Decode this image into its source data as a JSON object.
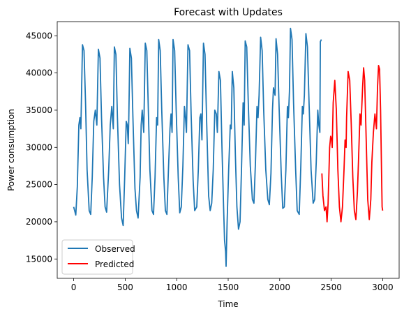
{
  "chart_data": {
    "type": "line",
    "title": "Forecast with Updates",
    "xlabel": "Time",
    "ylabel": "Power consumption",
    "xlim": [
      -160,
      3160
    ],
    "ylim": [
      12400,
      46900
    ],
    "xticks": [
      0,
      500,
      1000,
      1500,
      2000,
      2500,
      3000
    ],
    "yticks": [
      15000,
      20000,
      25000,
      30000,
      35000,
      40000,
      45000
    ],
    "grid": false,
    "legend_position": "lower-left",
    "series": [
      {
        "name": "Observed",
        "color": "#1f77b4",
        "points": [
          [
            0,
            22000
          ],
          [
            20,
            20900
          ],
          [
            35,
            24700
          ],
          [
            50,
            33000
          ],
          [
            60,
            34000
          ],
          [
            70,
            32500
          ],
          [
            85,
            43800
          ],
          [
            100,
            43000
          ],
          [
            115,
            36000
          ],
          [
            130,
            27000
          ],
          [
            150,
            21500
          ],
          [
            165,
            21000
          ],
          [
            180,
            26000
          ],
          [
            195,
            33500
          ],
          [
            210,
            35000
          ],
          [
            225,
            33000
          ],
          [
            240,
            43200
          ],
          [
            255,
            42000
          ],
          [
            270,
            34000
          ],
          [
            290,
            26000
          ],
          [
            305,
            22000
          ],
          [
            320,
            21300
          ],
          [
            340,
            27000
          ],
          [
            355,
            33000
          ],
          [
            370,
            35500
          ],
          [
            385,
            32500
          ],
          [
            395,
            43500
          ],
          [
            410,
            42500
          ],
          [
            425,
            34000
          ],
          [
            445,
            25000
          ],
          [
            465,
            20500
          ],
          [
            480,
            19500
          ],
          [
            495,
            26000
          ],
          [
            510,
            33500
          ],
          [
            520,
            33000
          ],
          [
            530,
            30500
          ],
          [
            535,
            34000
          ],
          [
            545,
            43300
          ],
          [
            560,
            42000
          ],
          [
            575,
            34000
          ],
          [
            595,
            24500
          ],
          [
            610,
            21500
          ],
          [
            625,
            20500
          ],
          [
            645,
            26000
          ],
          [
            655,
            33000
          ],
          [
            665,
            35000
          ],
          [
            680,
            32000
          ],
          [
            695,
            44000
          ],
          [
            710,
            43000
          ],
          [
            725,
            35000
          ],
          [
            740,
            27000
          ],
          [
            760,
            21500
          ],
          [
            775,
            21000
          ],
          [
            790,
            26000
          ],
          [
            805,
            34000
          ],
          [
            815,
            33000
          ],
          [
            825,
            44500
          ],
          [
            840,
            43000
          ],
          [
            855,
            35000
          ],
          [
            875,
            26000
          ],
          [
            890,
            21500
          ],
          [
            905,
            21000
          ],
          [
            920,
            27000
          ],
          [
            935,
            32500
          ],
          [
            945,
            34500
          ],
          [
            955,
            32000
          ],
          [
            965,
            44500
          ],
          [
            980,
            43000
          ],
          [
            995,
            35000
          ],
          [
            1015,
            26000
          ],
          [
            1030,
            21200
          ],
          [
            1045,
            22000
          ],
          [
            1060,
            27500
          ],
          [
            1075,
            35500
          ],
          [
            1085,
            34000
          ],
          [
            1095,
            32000
          ],
          [
            1110,
            43800
          ],
          [
            1125,
            43000
          ],
          [
            1140,
            34500
          ],
          [
            1160,
            25500
          ],
          [
            1175,
            21500
          ],
          [
            1195,
            22000
          ],
          [
            1210,
            27000
          ],
          [
            1225,
            34000
          ],
          [
            1235,
            34500
          ],
          [
            1245,
            31000
          ],
          [
            1260,
            44000
          ],
          [
            1275,
            42500
          ],
          [
            1290,
            34000
          ],
          [
            1310,
            23500
          ],
          [
            1325,
            21500
          ],
          [
            1340,
            22500
          ],
          [
            1355,
            27000
          ],
          [
            1370,
            35000
          ],
          [
            1385,
            34500
          ],
          [
            1395,
            32000
          ],
          [
            1410,
            40200
          ],
          [
            1425,
            39000
          ],
          [
            1440,
            30000
          ],
          [
            1455,
            22000
          ],
          [
            1465,
            17500
          ],
          [
            1475,
            16000
          ],
          [
            1480,
            14000
          ],
          [
            1490,
            20000
          ],
          [
            1505,
            27000
          ],
          [
            1520,
            33000
          ],
          [
            1530,
            32500
          ],
          [
            1540,
            40200
          ],
          [
            1555,
            38000
          ],
          [
            1570,
            29000
          ],
          [
            1585,
            22000
          ],
          [
            1600,
            19000
          ],
          [
            1615,
            20000
          ],
          [
            1630,
            27500
          ],
          [
            1645,
            36000
          ],
          [
            1655,
            33000
          ],
          [
            1665,
            44300
          ],
          [
            1680,
            43500
          ],
          [
            1695,
            36000
          ],
          [
            1715,
            27500
          ],
          [
            1735,
            23000
          ],
          [
            1750,
            22500
          ],
          [
            1765,
            28000
          ],
          [
            1780,
            35500
          ],
          [
            1790,
            34000
          ],
          [
            1800,
            37000
          ],
          [
            1815,
            44800
          ],
          [
            1830,
            43000
          ],
          [
            1845,
            35000
          ],
          [
            1865,
            27000
          ],
          [
            1885,
            23000
          ],
          [
            1900,
            22300
          ],
          [
            1915,
            26500
          ],
          [
            1930,
            35000
          ],
          [
            1940,
            38000
          ],
          [
            1955,
            37000
          ],
          [
            1965,
            44600
          ],
          [
            1980,
            42500
          ],
          [
            1995,
            35000
          ],
          [
            2015,
            26500
          ],
          [
            2030,
            21800
          ],
          [
            2045,
            22000
          ],
          [
            2060,
            27000
          ],
          [
            2075,
            35500
          ],
          [
            2085,
            34000
          ],
          [
            2095,
            37500
          ],
          [
            2105,
            46000
          ],
          [
            2120,
            44500
          ],
          [
            2135,
            36000
          ],
          [
            2155,
            27000
          ],
          [
            2170,
            21500
          ],
          [
            2190,
            21000
          ],
          [
            2205,
            27500
          ],
          [
            2220,
            35500
          ],
          [
            2230,
            34500
          ],
          [
            2240,
            37000
          ],
          [
            2255,
            45300
          ],
          [
            2270,
            43500
          ],
          [
            2285,
            36000
          ],
          [
            2305,
            27000
          ],
          [
            2325,
            22500
          ],
          [
            2340,
            23000
          ],
          [
            2355,
            28000
          ],
          [
            2370,
            35000
          ],
          [
            2380,
            33000
          ],
          [
            2390,
            32000
          ],
          [
            2395,
            44200
          ],
          [
            2405,
            44500
          ]
        ]
      },
      {
        "name": "Predicted",
        "color": "#ff0000",
        "points": [
          [
            2410,
            26500
          ],
          [
            2420,
            23500
          ],
          [
            2435,
            21500
          ],
          [
            2450,
            22000
          ],
          [
            2460,
            20000
          ],
          [
            2470,
            22500
          ],
          [
            2485,
            30000
          ],
          [
            2495,
            31500
          ],
          [
            2505,
            31000
          ],
          [
            2510,
            30000
          ],
          [
            2520,
            36000
          ],
          [
            2535,
            39000
          ],
          [
            2550,
            35000
          ],
          [
            2565,
            27000
          ],
          [
            2580,
            22000
          ],
          [
            2595,
            20000
          ],
          [
            2610,
            22000
          ],
          [
            2625,
            27000
          ],
          [
            2635,
            31000
          ],
          [
            2645,
            30000
          ],
          [
            2650,
            34000
          ],
          [
            2665,
            40200
          ],
          [
            2680,
            39000
          ],
          [
            2695,
            33000
          ],
          [
            2710,
            26000
          ],
          [
            2725,
            21500
          ],
          [
            2740,
            20300
          ],
          [
            2755,
            24000
          ],
          [
            2765,
            28000
          ],
          [
            2780,
            34500
          ],
          [
            2790,
            33000
          ],
          [
            2805,
            38000
          ],
          [
            2815,
            40700
          ],
          [
            2825,
            39000
          ],
          [
            2840,
            31000
          ],
          [
            2855,
            23000
          ],
          [
            2870,
            20300
          ],
          [
            2885,
            23000
          ],
          [
            2895,
            28000
          ],
          [
            2910,
            32000
          ],
          [
            2925,
            34500
          ],
          [
            2940,
            32500
          ],
          [
            2950,
            38000
          ],
          [
            2960,
            41000
          ],
          [
            2970,
            40500
          ],
          [
            2980,
            35000
          ],
          [
            2990,
            26000
          ],
          [
            2995,
            22000
          ],
          [
            3000,
            21500
          ]
        ]
      }
    ]
  }
}
